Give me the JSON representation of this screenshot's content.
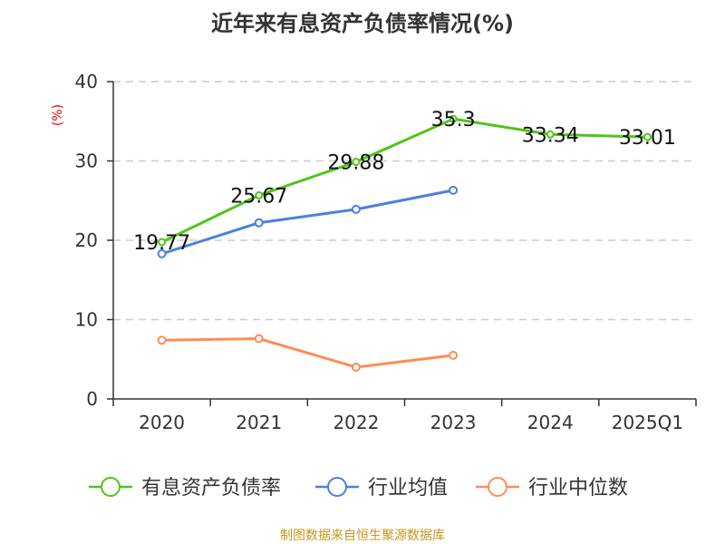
{
  "chart_data": {
    "type": "line",
    "title": "近年来有息资产负债率情况(%)",
    "ylabel": "(%)",
    "categories": [
      "2020",
      "2021",
      "2022",
      "2023",
      "2024",
      "2025Q1"
    ],
    "ylim": [
      0,
      40
    ],
    "yticks": [
      0,
      10,
      20,
      30,
      40
    ],
    "grid": true,
    "legend_position": "bottom",
    "series": [
      {
        "name": "有息资产负债率",
        "color": "#52c41a",
        "values": [
          19.77,
          25.67,
          29.88,
          35.3,
          33.34,
          33.01
        ],
        "labels": [
          "19.77",
          "25.67",
          "29.88",
          "35.3",
          "33.34",
          "33.01"
        ]
      },
      {
        "name": "行业均值",
        "color": "#4a80e0",
        "values": [
          18.3,
          22.2,
          23.9,
          26.3,
          null,
          null
        ]
      },
      {
        "name": "行业中位数",
        "color": "#ff8c55",
        "values": [
          7.4,
          7.6,
          4.0,
          5.5,
          null,
          null
        ]
      }
    ]
  },
  "source": "制图数据来自恒生聚源数据库"
}
